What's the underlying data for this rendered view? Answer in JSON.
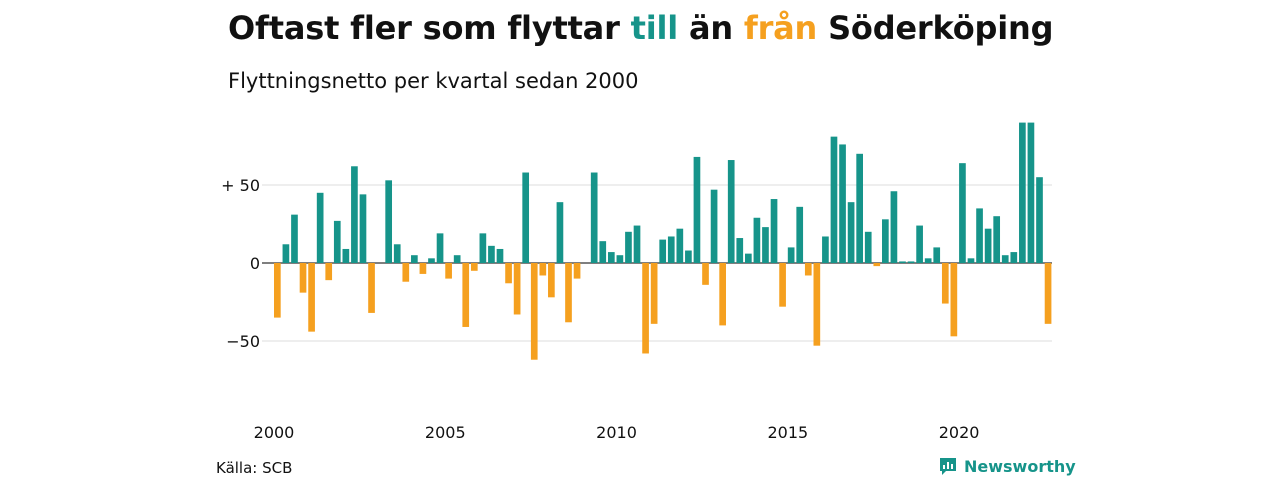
{
  "title": {
    "part1": "Oftast fler som flyttar ",
    "till": "till",
    "part2": " än ",
    "fran": "från",
    "part3": " Söderköping"
  },
  "subtitle": "Flyttningsnetto per kvartal sedan 2000",
  "source": "Källa: SCB",
  "brand": "Newsworthy",
  "colors": {
    "positive": "#16948a",
    "negative": "#f5a01f",
    "grid": "#dddddd"
  },
  "chart_data": {
    "type": "bar",
    "title": "Oftast fler som flyttar till än från Söderköping",
    "subtitle": "Flyttningsnetto per kvartal sedan 2000",
    "xlabel": "",
    "ylabel": "",
    "ylim": [
      -80,
      90
    ],
    "y_ticks": [
      {
        "value": 50,
        "label": "+ 50"
      },
      {
        "value": 0,
        "label": "0"
      },
      {
        "value": -50,
        "label": "−50"
      }
    ],
    "x_ticks": [
      {
        "value": 2000,
        "label": "2000"
      },
      {
        "value": 2005,
        "label": "2005"
      },
      {
        "value": 2010,
        "label": "2010"
      },
      {
        "value": 2015,
        "label": "2015"
      },
      {
        "value": 2020,
        "label": "2020"
      }
    ],
    "grid": true,
    "start": {
      "year": 2000,
      "quarter": 1
    },
    "values": [
      -35,
      12,
      31,
      -19,
      -44,
      45,
      -11,
      27,
      9,
      62,
      44,
      -32,
      0,
      53,
      12,
      -12,
      5,
      -7,
      3,
      19,
      -10,
      5,
      -41,
      -5,
      19,
      11,
      9,
      -13,
      -33,
      58,
      -62,
      -8,
      -22,
      39,
      -38,
      -10,
      0,
      58,
      14,
      7,
      5,
      20,
      24,
      -58,
      -39,
      15,
      17,
      22,
      8,
      68,
      -14,
      47,
      -40,
      66,
      16,
      6,
      29,
      23,
      41,
      -28,
      10,
      36,
      -8,
      -53,
      17,
      81,
      76,
      39,
      70,
      20,
      -2,
      28,
      46,
      1,
      1,
      24,
      3,
      10,
      -26,
      -47,
      64,
      3,
      35,
      22,
      30,
      5,
      7,
      90,
      90,
      55,
      -39
    ]
  }
}
